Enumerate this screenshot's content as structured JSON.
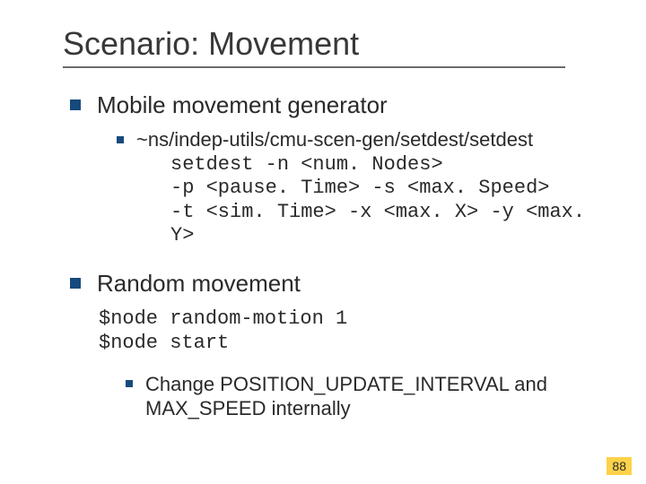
{
  "colors": {
    "bullet": "#174a7c",
    "underline": "#6b6b6b",
    "title": "#383838",
    "body": "#2a2a2a",
    "pagenum_bg": "#ffd24a",
    "background": "#ffffff"
  },
  "title": "Scenario: Movement",
  "items": [
    {
      "label": "Mobile movement generator",
      "sub": {
        "bullet": "~ns/indep-utils/cmu-scen-gen/setdest/setdest",
        "code": [
          "setdest -n <num. Nodes>",
          "-p <pause. Time> -s <max. Speed>",
          "-t <sim. Time> -x <max. X> -y <max. Y>"
        ]
      }
    },
    {
      "label": "Random movement",
      "code": [
        "$node random-motion 1",
        "$node start"
      ],
      "sub2": "Change POSITION_UPDATE_INTERVAL and MAX_SPEED internally"
    }
  ],
  "page_number": "88",
  "typography": {
    "title_fontsize": 36,
    "l1_fontsize": 26,
    "l2_fontsize": 22,
    "code_fontsize": 22,
    "pagenum_fontsize": 14
  }
}
